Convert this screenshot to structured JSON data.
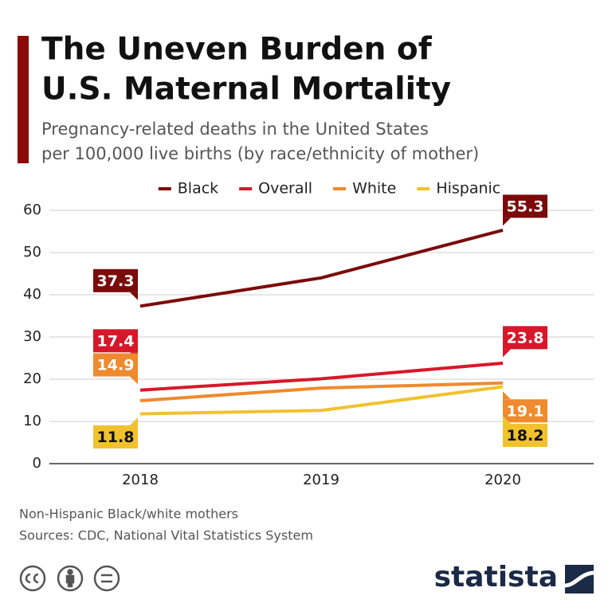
{
  "chart_data": {
    "type": "line",
    "title": [
      "The Uneven Burden of",
      "U.S. Maternal Mortality"
    ],
    "subtitle": [
      "Pregnancy-related deaths in the United States",
      "per 100,000 live births (by race/ethnicity of mother)"
    ],
    "categories": [
      "2018",
      "2019",
      "2020"
    ],
    "series": [
      {
        "name": "Black",
        "color": "#7b0a0a",
        "values": [
          37.3,
          44.0,
          55.3
        ]
      },
      {
        "name": "Overall",
        "color": "#d7182a",
        "values": [
          17.4,
          20.1,
          23.8
        ]
      },
      {
        "name": "White",
        "color": "#ef8a2e",
        "values": [
          14.9,
          17.9,
          19.1
        ]
      },
      {
        "name": "Hispanic",
        "color": "#f0c22e",
        "values": [
          11.8,
          12.6,
          18.2
        ]
      }
    ],
    "ylim": [
      0,
      60
    ],
    "yticks": [
      0,
      10,
      20,
      30,
      40,
      50,
      60
    ],
    "grid": true,
    "legend": "top",
    "notes": [
      "Non-Hispanic Black/white mothers",
      "Sources: CDC, National Vital Statistics System"
    ],
    "brand": "statista"
  }
}
